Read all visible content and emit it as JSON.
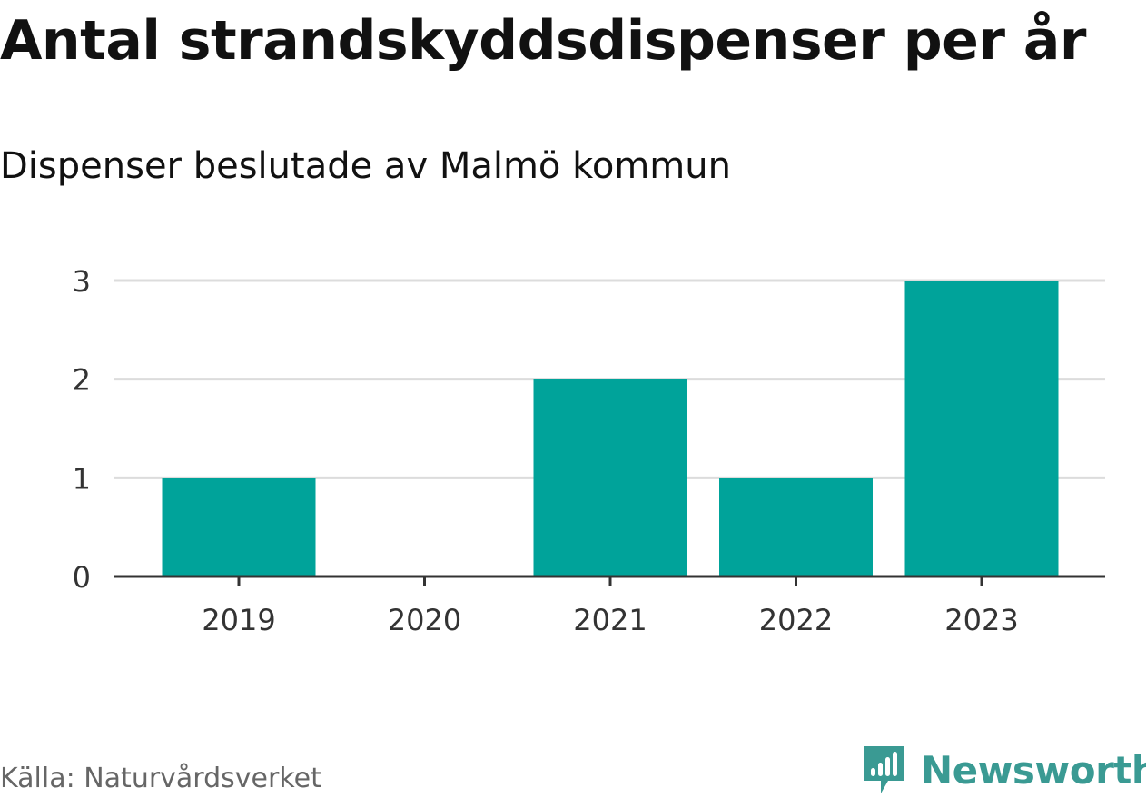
{
  "chart_data": {
    "type": "bar",
    "title": "Antal strandskyddsdispenser per år",
    "subtitle": "Dispenser beslutade av Malmö kommun",
    "categories": [
      "2019",
      "2020",
      "2021",
      "2022",
      "2023"
    ],
    "values": [
      1,
      0,
      2,
      1,
      3
    ],
    "yticks": [
      "0",
      "1",
      "2",
      "3"
    ],
    "ylim": [
      0,
      3
    ],
    "xlabel": "",
    "ylabel": "",
    "grid": true,
    "bar_color": "#00a39a"
  },
  "footer": {
    "source": "Källa: Naturvårdsverket",
    "brand": "Newsworthy",
    "brand_icon": "newsworthy-logo-icon",
    "brand_color": "#3a9a93"
  }
}
